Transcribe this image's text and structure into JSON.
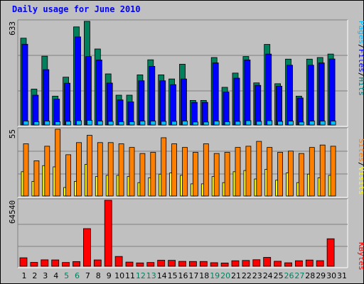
{
  "title": "Daily usage for June 2010",
  "chart_data": [
    {
      "type": "bar",
      "panel": "pages-files-hits",
      "max_label": "633",
      "ymax": 633,
      "legend": [
        {
          "text": "Pages",
          "color": "#00c0ff"
        },
        {
          "text": "/",
          "color": "#000000"
        },
        {
          "text": "Files",
          "color": "#0000ff"
        },
        {
          "text": "/",
          "color": "#000000"
        },
        {
          "text": "Hits",
          "color": "#008080"
        }
      ],
      "series": [
        {
          "name": "Hits",
          "color": "#00805c",
          "values": [
            530,
            219,
            420,
            176,
            292,
            599,
            633,
            464,
            312,
            182,
            182,
            306,
            398,
            306,
            281,
            371,
            150,
            150,
            412,
            230,
            317,
            418,
            257,
            492,
            252,
            402,
            176,
            402,
            412,
            433
          ]
        },
        {
          "name": "Files",
          "color": "#0000ff",
          "values": [
            493,
            182,
            338,
            158,
            255,
            538,
            418,
            397,
            256,
            153,
            141,
            270,
            358,
            270,
            246,
            281,
            138,
            138,
            379,
            201,
            286,
            397,
            242,
            433,
            237,
            365,
            165,
            365,
            379,
            403
          ]
        },
        {
          "name": "Pages",
          "color": "#00c0ff",
          "values": [
            24,
            20,
            24,
            20,
            22,
            26,
            28,
            24,
            22,
            20,
            20,
            24,
            24,
            22,
            22,
            24,
            18,
            18,
            24,
            20,
            22,
            26,
            22,
            26,
            22,
            24,
            18,
            24,
            24,
            24
          ]
        }
      ]
    },
    {
      "type": "bar",
      "panel": "visits-sites",
      "max_label": "55",
      "ymax": 55,
      "legend": [
        {
          "text": "Sites",
          "color": "#ff8000"
        },
        {
          "text": "/",
          "color": "#000000"
        },
        {
          "text": "Visits",
          "color": "#ffff00"
        }
      ],
      "series": [
        {
          "name": "Visits",
          "color": "#ff8000",
          "values": [
            43,
            29,
            41,
            55,
            34,
            44,
            50,
            44,
            44,
            43,
            40,
            35,
            36,
            48,
            43,
            40,
            36,
            43,
            35,
            36,
            40,
            41,
            45,
            40,
            36,
            37,
            35,
            40,
            42,
            41
          ]
        },
        {
          "name": "Sites",
          "color": "#ffff00",
          "values": [
            20,
            12,
            25,
            24,
            7,
            12,
            26,
            16,
            17,
            17,
            16,
            11,
            15,
            18,
            19,
            17,
            10,
            10,
            16,
            11,
            20,
            21,
            14,
            22,
            13,
            19,
            11,
            18,
            15,
            17
          ]
        }
      ]
    },
    {
      "type": "bar",
      "panel": "kbytes",
      "max_label": "64540",
      "ymax": 64540,
      "legend": [
        {
          "text": "KBytes",
          "color": "#ff0000"
        }
      ],
      "series": [
        {
          "name": "KBytes",
          "color": "#ff0000",
          "values": [
            8300,
            3800,
            6300,
            6200,
            3700,
            4600,
            36800,
            6200,
            64540,
            9600,
            4100,
            3300,
            3700,
            5900,
            5800,
            4800,
            4700,
            4700,
            3500,
            3200,
            5400,
            5700,
            6400,
            8700,
            4900,
            3400,
            5400,
            6100,
            5500,
            26900
          ]
        }
      ]
    }
  ],
  "x_labels": [
    {
      "text": "1",
      "color": "#000000"
    },
    {
      "text": "2",
      "color": "#000000"
    },
    {
      "text": "3",
      "color": "#000000"
    },
    {
      "text": "4",
      "color": "#000000"
    },
    {
      "text": "5",
      "color": "#008060"
    },
    {
      "text": "6",
      "color": "#008060"
    },
    {
      "text": "7",
      "color": "#000000"
    },
    {
      "text": "8",
      "color": "#000000"
    },
    {
      "text": "9",
      "color": "#000000"
    },
    {
      "text": "10",
      "color": "#000000"
    },
    {
      "text": "11",
      "color": "#000000"
    },
    {
      "text": "12",
      "color": "#008060"
    },
    {
      "text": "13",
      "color": "#008060"
    },
    {
      "text": "14",
      "color": "#000000"
    },
    {
      "text": "15",
      "color": "#000000"
    },
    {
      "text": "16",
      "color": "#000000"
    },
    {
      "text": "17",
      "color": "#000000"
    },
    {
      "text": "18",
      "color": "#000000"
    },
    {
      "text": "19",
      "color": "#008060"
    },
    {
      "text": "20",
      "color": "#008060"
    },
    {
      "text": "21",
      "color": "#000000"
    },
    {
      "text": "22",
      "color": "#000000"
    },
    {
      "text": "23",
      "color": "#000000"
    },
    {
      "text": "24",
      "color": "#000000"
    },
    {
      "text": "25",
      "color": "#000000"
    },
    {
      "text": "26",
      "color": "#008060"
    },
    {
      "text": "27",
      "color": "#008060"
    },
    {
      "text": "28",
      "color": "#000000"
    },
    {
      "text": "29",
      "color": "#000000"
    },
    {
      "text": "30",
      "color": "#000000"
    },
    {
      "text": "31",
      "color": "#000000"
    }
  ]
}
